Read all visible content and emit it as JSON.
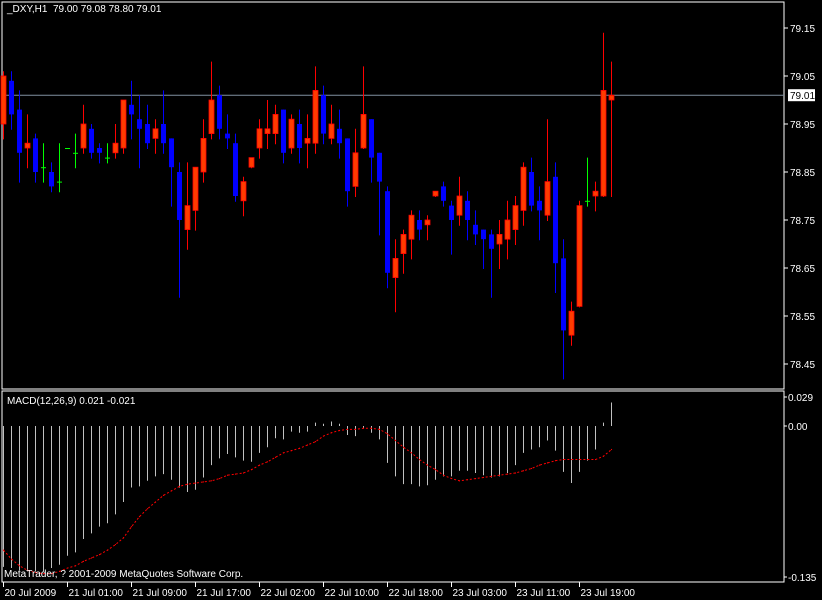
{
  "header": {
    "symbol_period": "_DXY,H1",
    "ohlc_readout": "79.00 79.08 78.80 79.01"
  },
  "copyright": "MetaTrader, ? 2001-2009 MetaQuotes Software Corp.",
  "colors": {
    "background": "#000000",
    "frame": "#ffffff",
    "bull_body": "#ff3c00",
    "bull_wick": "#ff0000",
    "bear": "#0000ff",
    "doji": "#00ff00",
    "bid_line": "#8090a0",
    "macd_histogram": "#c0c0c0",
    "signal_line": "#ff0000"
  },
  "time_labels": [
    {
      "label": "20 Jul 2009",
      "bar": 0
    },
    {
      "label": "21 Jul 01:00",
      "bar": 8
    },
    {
      "label": "21 Jul 09:00",
      "bar": 16
    },
    {
      "label": "21 Jul 17:00",
      "bar": 24
    },
    {
      "label": "22 Jul 02:00",
      "bar": 32
    },
    {
      "label": "22 Jul 10:00",
      "bar": 40
    },
    {
      "label": "22 Jul 18:00",
      "bar": 48
    },
    {
      "label": "23 Jul 03:00",
      "bar": 56
    },
    {
      "label": "23 Jul 11:00",
      "bar": 64
    },
    {
      "label": "23 Jul 19:00",
      "bar": 72
    }
  ],
  "chart_data": [
    {
      "type": "candlestick",
      "symbol": "_DXY",
      "timeframe": "H1",
      "ylim": [
        78.415,
        79.205
      ],
      "grid": false,
      "y_ticks": [
        "79.15",
        "79.05",
        "78.95",
        "78.85",
        "78.75",
        "78.65",
        "78.55",
        "78.45"
      ],
      "current_price": "79.01",
      "ohlc": [
        [
          78.95,
          79.06,
          78.92,
          79.05
        ],
        [
          79.04,
          79.06,
          78.94,
          78.97
        ],
        [
          78.98,
          79.02,
          78.83,
          78.89
        ],
        [
          78.9,
          78.97,
          78.86,
          78.91
        ],
        [
          78.92,
          78.93,
          78.83,
          78.85
        ],
        [
          78.86,
          78.91,
          78.83,
          78.86
        ],
        [
          78.85,
          78.87,
          78.81,
          78.82
        ],
        [
          78.83,
          78.91,
          78.81,
          78.83
        ],
        [
          78.9,
          78.9,
          78.9,
          78.9
        ],
        [
          78.89,
          78.93,
          78.86,
          78.89
        ],
        [
          78.9,
          78.99,
          78.89,
          78.95
        ],
        [
          78.94,
          78.95,
          78.88,
          78.89
        ],
        [
          78.9,
          78.91,
          78.87,
          78.89
        ],
        [
          78.88,
          78.91,
          78.87,
          78.88
        ],
        [
          78.89,
          78.95,
          78.88,
          78.91
        ],
        [
          78.9,
          79.0,
          78.89,
          79.0
        ],
        [
          78.99,
          79.04,
          78.92,
          78.97
        ],
        [
          78.96,
          79.01,
          78.86,
          78.94
        ],
        [
          78.95,
          78.99,
          78.9,
          78.91
        ],
        [
          78.92,
          78.96,
          78.89,
          78.94
        ],
        [
          78.95,
          79.02,
          78.89,
          78.91
        ],
        [
          78.92,
          78.92,
          78.78,
          78.86
        ],
        [
          78.85,
          78.87,
          78.59,
          78.75
        ],
        [
          78.73,
          78.87,
          78.69,
          78.78
        ],
        [
          78.77,
          78.86,
          78.73,
          78.86
        ],
        [
          78.85,
          78.96,
          78.83,
          78.92
        ],
        [
          78.93,
          79.08,
          78.92,
          79.0
        ],
        [
          79.01,
          79.03,
          78.92,
          78.94
        ],
        [
          78.93,
          78.97,
          78.9,
          78.92
        ],
        [
          78.91,
          78.93,
          78.79,
          78.8
        ],
        [
          78.79,
          78.84,
          78.76,
          78.83
        ],
        [
          78.86,
          78.88,
          78.86,
          78.88
        ],
        [
          78.9,
          78.96,
          78.88,
          78.94
        ],
        [
          78.93,
          79.0,
          78.9,
          78.94
        ],
        [
          78.93,
          78.99,
          78.91,
          78.97
        ],
        [
          78.98,
          78.98,
          78.87,
          78.89
        ],
        [
          78.9,
          78.97,
          78.89,
          78.96
        ],
        [
          78.95,
          78.98,
          78.87,
          78.9
        ],
        [
          78.91,
          78.97,
          78.86,
          78.92
        ],
        [
          78.91,
          79.07,
          78.89,
          79.02
        ],
        [
          79.01,
          79.03,
          78.91,
          78.93
        ],
        [
          78.92,
          78.99,
          78.91,
          78.95
        ],
        [
          78.94,
          78.98,
          78.88,
          78.91
        ],
        [
          78.92,
          78.92,
          78.78,
          78.81
        ],
        [
          78.82,
          78.94,
          78.8,
          78.89
        ],
        [
          78.9,
          79.07,
          78.9,
          78.97
        ],
        [
          78.96,
          78.96,
          78.83,
          78.88
        ],
        [
          78.89,
          78.89,
          78.72,
          78.83
        ],
        [
          78.81,
          78.82,
          78.61,
          78.64
        ],
        [
          78.63,
          78.71,
          78.56,
          78.67
        ],
        [
          78.68,
          78.73,
          78.64,
          78.72
        ],
        [
          78.71,
          78.77,
          78.67,
          78.76
        ],
        [
          78.75,
          78.77,
          78.71,
          78.73
        ],
        [
          78.74,
          78.76,
          78.71,
          78.75
        ],
        [
          78.8,
          78.81,
          78.8,
          78.81
        ],
        [
          78.82,
          78.83,
          78.78,
          78.79
        ],
        [
          78.78,
          78.79,
          78.68,
          78.75
        ],
        [
          78.76,
          78.84,
          78.74,
          78.8
        ],
        [
          78.79,
          78.81,
          78.71,
          78.75
        ],
        [
          78.74,
          78.77,
          78.7,
          78.72
        ],
        [
          78.73,
          78.73,
          78.65,
          78.71
        ],
        [
          78.72,
          78.73,
          78.59,
          78.69
        ],
        [
          78.7,
          78.75,
          78.65,
          78.72
        ],
        [
          78.71,
          78.79,
          78.67,
          78.75
        ],
        [
          78.73,
          78.8,
          78.7,
          78.78
        ],
        [
          78.77,
          78.87,
          78.74,
          78.86
        ],
        [
          78.85,
          78.88,
          78.77,
          78.78
        ],
        [
          78.79,
          78.82,
          78.71,
          78.77
        ],
        [
          78.76,
          78.96,
          78.75,
          78.83
        ],
        [
          78.84,
          78.87,
          78.6,
          78.66
        ],
        [
          78.67,
          78.71,
          78.42,
          78.52
        ],
        [
          78.51,
          78.58,
          78.49,
          78.56
        ],
        [
          78.57,
          78.79,
          78.57,
          78.78
        ],
        [
          78.79,
          78.88,
          78.78,
          78.79
        ],
        [
          78.8,
          78.83,
          78.77,
          78.81
        ],
        [
          78.8,
          79.14,
          78.8,
          79.02
        ],
        [
          79.0,
          79.08,
          78.8,
          79.01
        ]
      ]
    },
    {
      "type": "bar",
      "title": "MACD(12,26,9) 0.021 -0.021",
      "ylim": [
        -0.141,
        0.031
      ],
      "y_ticks": [
        "0.029",
        "0.00",
        "-0.135"
      ],
      "grid": false,
      "series": [
        {
          "name": "MACD",
          "style": "histogram",
          "values": [
            -0.126,
            -0.127,
            -0.129,
            -0.13,
            -0.13,
            -0.13,
            -0.127,
            -0.124,
            -0.116,
            -0.113,
            -0.101,
            -0.096,
            -0.09,
            -0.087,
            -0.079,
            -0.068,
            -0.055,
            -0.054,
            -0.049,
            -0.045,
            -0.043,
            -0.048,
            -0.055,
            -0.059,
            -0.057,
            -0.046,
            -0.035,
            -0.029,
            -0.025,
            -0.028,
            -0.031,
            -0.032,
            -0.024,
            -0.019,
            -0.011,
            -0.012,
            -0.005,
            -0.006,
            -0.005,
            0.003,
            0.002,
            0.004,
            0.002,
            -0.008,
            -0.009,
            -0.002,
            -0.006,
            -0.012,
            -0.033,
            -0.045,
            -0.052,
            -0.052,
            -0.054,
            -0.053,
            -0.048,
            -0.045,
            -0.045,
            -0.04,
            -0.04,
            -0.042,
            -0.044,
            -0.046,
            -0.045,
            -0.042,
            -0.035,
            -0.024,
            -0.021,
            -0.019,
            -0.013,
            -0.022,
            -0.041,
            -0.051,
            -0.041,
            -0.031,
            -0.021,
            0.003,
            0.021
          ]
        },
        {
          "name": "Signal",
          "style": "dotted-line",
          "values": [
            -0.111,
            -0.119,
            -0.125,
            -0.129,
            -0.131,
            -0.132,
            -0.132,
            -0.13,
            -0.127,
            -0.125,
            -0.121,
            -0.118,
            -0.115,
            -0.111,
            -0.106,
            -0.1,
            -0.09,
            -0.081,
            -0.074,
            -0.068,
            -0.062,
            -0.058,
            -0.054,
            -0.052,
            -0.051,
            -0.05,
            -0.049,
            -0.047,
            -0.044,
            -0.043,
            -0.042,
            -0.039,
            -0.035,
            -0.032,
            -0.028,
            -0.024,
            -0.022,
            -0.02,
            -0.017,
            -0.014,
            -0.009,
            -0.006,
            -0.004,
            -0.003,
            -0.003,
            -0.002,
            -0.002,
            -0.003,
            -0.007,
            -0.013,
            -0.019,
            -0.024,
            -0.03,
            -0.035,
            -0.039,
            -0.044,
            -0.047,
            -0.049,
            -0.048,
            -0.047,
            -0.046,
            -0.045,
            -0.044,
            -0.043,
            -0.042,
            -0.04,
            -0.038,
            -0.035,
            -0.033,
            -0.031,
            -0.03,
            -0.03,
            -0.03,
            -0.03,
            -0.03,
            -0.027,
            -0.021
          ]
        }
      ]
    }
  ]
}
